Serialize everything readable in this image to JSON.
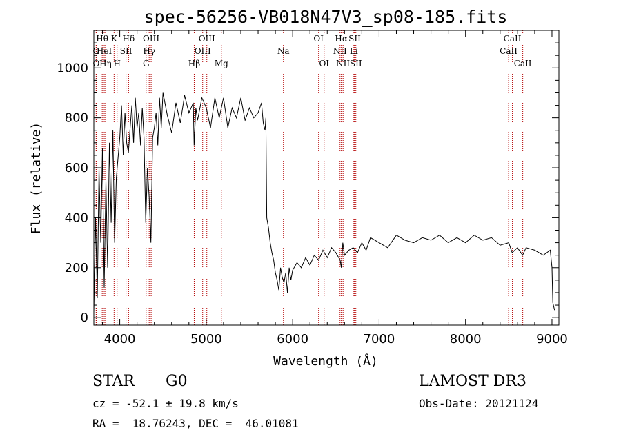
{
  "chart_data": {
    "type": "line",
    "title": "spec-56256-VB018N47V3_sp08-185.fits",
    "xlabel": "Wavelength (Å)",
    "ylabel": "Flux (relative)",
    "xlim": [
      3700,
      9080
    ],
    "ylim": [
      -30,
      1150
    ],
    "x_ticks": [
      4000,
      5000,
      6000,
      7000,
      8000,
      9000
    ],
    "y_ticks": [
      0,
      200,
      400,
      600,
      800,
      1000
    ],
    "x_tick_labels": [
      "4000",
      "5000",
      "6000",
      "7000",
      "8000",
      "9000"
    ],
    "y_tick_labels": [
      "0",
      "200",
      "400",
      "600",
      "800",
      "1000"
    ],
    "spectrum": {
      "name": "flux",
      "x": [
        3700,
        3720,
        3740,
        3760,
        3780,
        3800,
        3820,
        3840,
        3860,
        3880,
        3900,
        3920,
        3940,
        3960,
        3980,
        4000,
        4020,
        4040,
        4060,
        4080,
        4100,
        4120,
        4140,
        4160,
        4180,
        4200,
        4220,
        4240,
        4260,
        4280,
        4300,
        4320,
        4340,
        4360,
        4380,
        4400,
        4420,
        4440,
        4460,
        4480,
        4500,
        4550,
        4600,
        4650,
        4700,
        4750,
        4800,
        4850,
        4860,
        4880,
        4900,
        4950,
        5000,
        5050,
        5100,
        5150,
        5200,
        5250,
        5300,
        5350,
        5400,
        5450,
        5500,
        5550,
        5600,
        5640,
        5660,
        5680,
        5690,
        5700,
        5720,
        5740,
        5760,
        5780,
        5800,
        5820,
        5840,
        5860,
        5880,
        5900,
        5920,
        5940,
        5960,
        5980,
        6000,
        6050,
        6100,
        6150,
        6200,
        6250,
        6300,
        6350,
        6400,
        6450,
        6500,
        6550,
        6563,
        6580,
        6600,
        6650,
        6700,
        6750,
        6800,
        6850,
        6900,
        7000,
        7100,
        7200,
        7300,
        7400,
        7500,
        7600,
        7700,
        7800,
        7900,
        8000,
        8100,
        8200,
        8300,
        8400,
        8500,
        8540,
        8600,
        8660,
        8700,
        8800,
        8900,
        8980,
        9000,
        9010,
        9030
      ],
      "y": [
        20,
        400,
        80,
        600,
        300,
        680,
        120,
        550,
        200,
        700,
        380,
        750,
        300,
        560,
        640,
        720,
        850,
        650,
        820,
        700,
        660,
        760,
        850,
        700,
        880,
        760,
        820,
        690,
        840,
        720,
        380,
        600,
        480,
        300,
        720,
        760,
        820,
        690,
        880,
        760,
        900,
        810,
        740,
        860,
        780,
        890,
        820,
        860,
        690,
        840,
        790,
        880,
        840,
        760,
        880,
        800,
        880,
        760,
        840,
        800,
        880,
        790,
        840,
        800,
        820,
        860,
        780,
        750,
        800,
        400,
        360,
        300,
        260,
        230,
        180,
        150,
        110,
        200,
        160,
        140,
        180,
        100,
        200,
        150,
        190,
        220,
        200,
        240,
        210,
        250,
        230,
        270,
        240,
        280,
        260,
        230,
        200,
        300,
        250,
        270,
        280,
        260,
        300,
        270,
        320,
        300,
        280,
        330,
        310,
        300,
        320,
        310,
        330,
        300,
        320,
        300,
        330,
        310,
        320,
        290,
        300,
        260,
        280,
        250,
        280,
        270,
        250,
        270,
        200,
        60,
        30
      ]
    },
    "lines": [
      {
        "label": "Hθ",
        "x": 3797,
        "row": 1
      },
      {
        "label": "O",
        "x": 3727,
        "row": 2
      },
      {
        "label": "O",
        "x": 3727,
        "row": 3
      },
      {
        "label": "HeI",
        "x": 3820,
        "row": 2
      },
      {
        "label": "Hη",
        "x": 3835,
        "row": 3
      },
      {
        "label": "K",
        "x": 3934,
        "row": 1
      },
      {
        "label": "H",
        "x": 3969,
        "row": 3
      },
      {
        "label": "SII",
        "x": 4072,
        "row": 2
      },
      {
        "label": "Hδ",
        "x": 4102,
        "row": 1
      },
      {
        "label": "OIII",
        "x": 4363,
        "row": 1
      },
      {
        "label": "Hγ",
        "x": 4340,
        "row": 2
      },
      {
        "label": "G",
        "x": 4305,
        "row": 3
      },
      {
        "label": "Hβ",
        "x": 4861,
        "row": 3
      },
      {
        "label": "OIII",
        "x": 4959,
        "row": 2
      },
      {
        "label": "OIII",
        "x": 5007,
        "row": 1
      },
      {
        "label": "Mg",
        "x": 5175,
        "row": 3
      },
      {
        "label": "Na",
        "x": 5893,
        "row": 2
      },
      {
        "label": "OI",
        "x": 6300,
        "row": 1
      },
      {
        "label": "OI",
        "x": 6364,
        "row": 3
      },
      {
        "label": "Hα",
        "x": 6563,
        "row": 1
      },
      {
        "label": "NII",
        "x": 6548,
        "row": 2
      },
      {
        "label": "NII",
        "x": 6583,
        "row": 3
      },
      {
        "label": "SII",
        "x": 6717,
        "row": 1
      },
      {
        "label": "Li",
        "x": 6708,
        "row": 2
      },
      {
        "label": "SII",
        "x": 6731,
        "row": 3
      },
      {
        "label": "CaII",
        "x": 8498,
        "row": 2
      },
      {
        "label": "CaII",
        "x": 8542,
        "row": 1
      },
      {
        "label": "CaII",
        "x": 8662,
        "row": 3
      }
    ]
  },
  "info": {
    "class": "STAR",
    "subclass": "G0",
    "survey": "LAMOST DR3",
    "velocity": "cz = -52.1 ± 19.8 km/s",
    "obs_date": "Obs-Date: 20121124",
    "coords": "RA =  18.76243, DEC =  46.01081"
  }
}
